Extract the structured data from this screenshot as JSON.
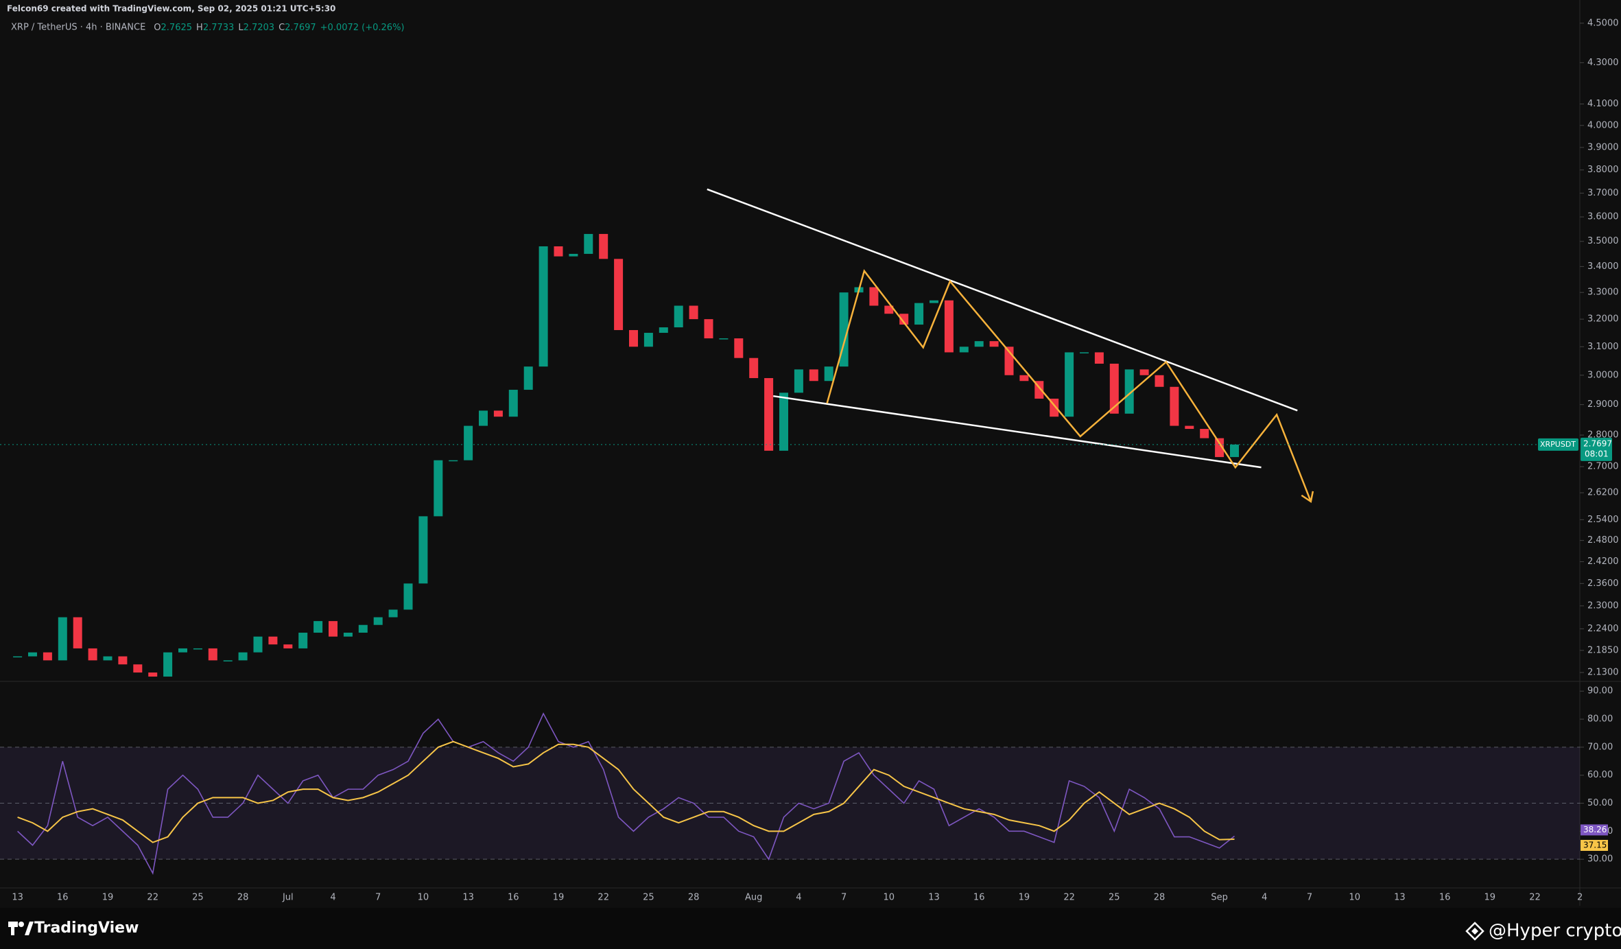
{
  "credit": "Felcon69 created with TradingView.com, Sep 02, 2025 01:21 UTC+5:30",
  "footer": {
    "brand": "TradingView",
    "author": "@Hyper crypto"
  },
  "chart_data": {
    "type": "candlestick",
    "title": "XRP / TetherUS · 4h · BINANCE",
    "ohlc": [
      {
        "label": "O",
        "value": 2.7625
      },
      {
        "label": "H",
        "value": 2.7733
      },
      {
        "label": "L",
        "value": 2.7203
      },
      {
        "label": "C",
        "value": 2.7697
      }
    ],
    "change": "+0.0072 (+0.26%)",
    "symbol": "XRPUSDT",
    "countdown": "08:01",
    "log_scale": true,
    "up_color": "#089981",
    "down_color": "#f23645",
    "categories": [
      "13",
      null,
      null,
      "16",
      null,
      null,
      "19",
      null,
      null,
      "22",
      null,
      null,
      "25",
      null,
      null,
      "28",
      null,
      null,
      "Jul",
      null,
      null,
      "4",
      null,
      null,
      "7",
      null,
      null,
      "10",
      null,
      null,
      "13",
      null,
      null,
      "16",
      null,
      null,
      "19",
      null,
      null,
      "22",
      null,
      null,
      "25",
      null,
      null,
      "28",
      null,
      null,
      null,
      "Aug",
      null,
      null,
      "4",
      null,
      null,
      "7",
      null,
      null,
      "10",
      null,
      null,
      "13",
      null,
      null,
      "16",
      null,
      null,
      "19",
      null,
      null,
      "22",
      null,
      null,
      "25",
      null,
      null,
      "28",
      null,
      null,
      null,
      "Sep",
      null,
      null,
      "4",
      null,
      null,
      "7",
      null,
      null,
      "10",
      null,
      null,
      "13",
      null,
      null,
      "16",
      null,
      null,
      "19",
      null,
      null,
      "22",
      null,
      null,
      "2"
    ],
    "series": [
      {
        "name": "XRPUSDT",
        "color": "#089981",
        "values": [
          2.17,
          2.18,
          2.16,
          2.27,
          2.19,
          2.16,
          2.17,
          2.15,
          2.13,
          2.12,
          2.18,
          2.19,
          2.19,
          2.16,
          2.16,
          2.18,
          2.22,
          2.2,
          2.19,
          2.23,
          2.26,
          2.22,
          2.23,
          2.25,
          2.27,
          2.29,
          2.36,
          2.55,
          2.72,
          2.72,
          2.83,
          2.88,
          2.86,
          2.95,
          3.03,
          3.48,
          3.44,
          3.45,
          3.53,
          3.43,
          3.16,
          3.1,
          3.15,
          3.17,
          3.25,
          3.2,
          3.13,
          3.13,
          3.06,
          2.99,
          2.75,
          2.94,
          3.02,
          2.98,
          3.03,
          3.3,
          3.32,
          3.25,
          3.22,
          3.18,
          3.26,
          3.27,
          3.08,
          3.1,
          3.12,
          3.1,
          3.0,
          2.98,
          2.92,
          2.86,
          3.08,
          3.08,
          3.04,
          2.87,
          3.02,
          3.0,
          2.96,
          2.83,
          2.82,
          2.79,
          2.73,
          2.7697,
          null,
          null,
          null,
          null,
          null,
          null,
          null,
          null,
          null,
          null,
          null,
          null,
          null,
          null,
          null,
          null,
          null,
          null,
          null,
          null,
          null,
          null,
          null
        ]
      }
    ],
    "ylim": [
      2.11,
      4.54
    ],
    "yticks": [
      {
        "value": 4.5,
        "label": "4.5000"
      },
      {
        "value": 4.3,
        "label": "4.3000"
      },
      {
        "value": 4.1,
        "label": "4.1000"
      },
      {
        "value": 4.0,
        "label": "4.0000"
      },
      {
        "value": 3.9,
        "label": "3.9000"
      },
      {
        "value": 3.8,
        "label": "3.8000"
      },
      {
        "value": 3.7,
        "label": "3.7000"
      },
      {
        "value": 3.6,
        "label": "3.6000"
      },
      {
        "value": 3.5,
        "label": "3.5000"
      },
      {
        "value": 3.4,
        "label": "3.4000"
      },
      {
        "value": 3.3,
        "label": "3.3000"
      },
      {
        "value": 3.2,
        "label": "3.2000"
      },
      {
        "value": 3.1,
        "label": "3.1000"
      },
      {
        "value": 3.0,
        "label": "3.0000"
      },
      {
        "value": 2.9,
        "label": "2.9000"
      },
      {
        "value": 2.8,
        "label": "2.8000"
      },
      {
        "value": 2.7,
        "label": "2.7000"
      },
      {
        "value": 2.62,
        "label": "2.6200"
      },
      {
        "value": 2.54,
        "label": "2.5400"
      },
      {
        "value": 2.48,
        "label": "2.4800"
      },
      {
        "value": 2.42,
        "label": "2.4200"
      },
      {
        "value": 2.36,
        "label": "2.3600"
      },
      {
        "value": 2.3,
        "label": "2.3000"
      },
      {
        "value": 2.24,
        "label": "2.2400"
      },
      {
        "value": 2.185,
        "label": "2.1850"
      },
      {
        "value": 2.13,
        "label": "2.1300"
      }
    ],
    "rsi": {
      "ylim": [
        20,
        93
      ],
      "yticks": [
        {
          "value": 90,
          "label": "90.00"
        },
        {
          "value": 80,
          "label": "80.00"
        },
        {
          "value": 70,
          "label": "70.00"
        },
        {
          "value": 60,
          "label": "60.00"
        },
        {
          "value": 50,
          "label": "50.00"
        },
        {
          "value": 40,
          "label": "40.00"
        },
        {
          "value": 30,
          "label": "30.00"
        }
      ],
      "band": [
        30,
        70
      ],
      "midline": 50,
      "band_color": "rgba(126,87,194,0.12)",
      "series": [
        {
          "color": "#7e57c2",
          "values": [
            40,
            35,
            42,
            65,
            45,
            42,
            45,
            40,
            35,
            25,
            55,
            60,
            55,
            45,
            45,
            50,
            60,
            55,
            50,
            58,
            60,
            52,
            55,
            55,
            60,
            62,
            65,
            75,
            80,
            72,
            70,
            72,
            68,
            65,
            70,
            82,
            72,
            70,
            72,
            62,
            45,
            40,
            45,
            48,
            52,
            50,
            45,
            45,
            40,
            38,
            30,
            45,
            50,
            48,
            50,
            65,
            68,
            60,
            55,
            50,
            58,
            55,
            42,
            45,
            48,
            45,
            40,
            40,
            38,
            36,
            58,
            56,
            52,
            40,
            55,
            52,
            48,
            38,
            38,
            36,
            34,
            38.26,
            null,
            null,
            null,
            null,
            null,
            null,
            null,
            null,
            null,
            null,
            null,
            null,
            null,
            null,
            null,
            null,
            null,
            null,
            null,
            null,
            null,
            null,
            null
          ]
        },
        {
          "color": "#f7c548",
          "values": [
            45,
            43,
            40,
            45,
            47,
            48,
            46,
            44,
            40,
            36,
            38,
            45,
            50,
            52,
            52,
            52,
            50,
            51,
            54,
            55,
            55,
            52,
            51,
            52,
            54,
            57,
            60,
            65,
            70,
            72,
            70,
            68,
            66,
            63,
            64,
            68,
            71,
            71,
            70,
            66,
            62,
            55,
            50,
            45,
            43,
            45,
            47,
            47,
            45,
            42,
            40,
            40,
            43,
            46,
            47,
            50,
            56,
            62,
            60,
            56,
            54,
            52,
            50,
            48,
            47,
            46,
            44,
            43,
            42,
            40,
            44,
            50,
            54,
            50,
            46,
            48,
            50,
            48,
            45,
            40,
            37,
            37.15,
            null,
            null,
            null,
            null,
            null,
            null,
            null,
            null,
            null,
            null,
            null,
            null,
            null,
            null,
            null,
            null,
            null,
            null,
            null,
            null,
            null,
            null,
            null
          ]
        }
      ]
    }
  }
}
